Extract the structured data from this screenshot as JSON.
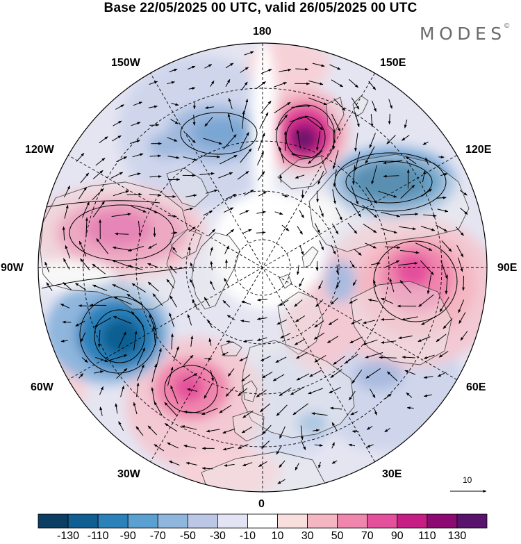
{
  "header": {
    "title": "Base 22/05/2025 00 UTC, valid 26/05/2025 00 UTC",
    "brand": "MODES",
    "brand_mark": "©"
  },
  "map": {
    "projection": "north-polar-stereographic",
    "longitude_labels": [
      "180",
      "150E",
      "120E",
      "90E",
      "60E",
      "30E",
      "0",
      "30W",
      "60W",
      "90W",
      "120W",
      "150W"
    ],
    "reference_vector_label": "10"
  },
  "colorbar": {
    "colors": [
      "#0c3d63",
      "#115f92",
      "#2c81ba",
      "#5aa0d0",
      "#8fb6dd",
      "#bcc7e6",
      "#e3e4f3",
      "#ffffff",
      "#f9dede",
      "#f4b6c2",
      "#ef86ad",
      "#e4509b",
      "#c71e86",
      "#8e0a73",
      "#5a136c"
    ],
    "tick_labels": [
      "-130",
      "-110",
      "-90",
      "-70",
      "-50",
      "-30",
      "-10",
      "10",
      "30",
      "50",
      "70",
      "90",
      "110",
      "130"
    ]
  },
  "colors": {
    "land_fill": "#ebebeb",
    "coastline": "#4a4a4a",
    "grid": "#000000",
    "vector": "#000000"
  }
}
